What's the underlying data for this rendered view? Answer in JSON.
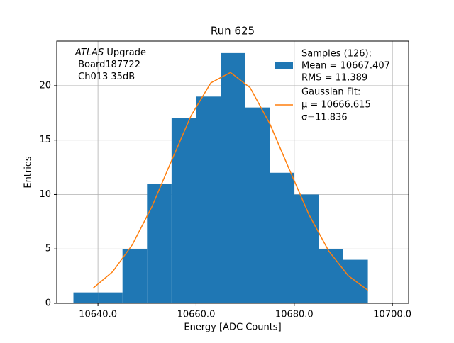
{
  "chart_data": {
    "type": "histogram",
    "title": "Run 625",
    "xlabel": "Energy [ADC Counts]",
    "ylabel": "Entries",
    "annotation": {
      "italic": "ATLAS",
      "lines": [
        "Upgrade",
        "Board187722",
        "Ch013 35dB"
      ]
    },
    "bins": [
      10635,
      10640,
      10645,
      10650,
      10655,
      10660,
      10665,
      10670,
      10675,
      10680,
      10685,
      10690,
      10695
    ],
    "series": [
      {
        "name": "Samples (126):",
        "details": [
          " Mean = 10667.407",
          " RMS = 11.389"
        ],
        "color": "#1f77b4",
        "values": [
          1,
          1,
          5,
          11,
          17,
          19,
          23,
          18,
          12,
          10,
          5,
          4
        ]
      }
    ],
    "fit": {
      "type": "line",
      "name": "Gaussian Fit:",
      "details": [
        " μ = 10666.615",
        " σ=11.836"
      ],
      "color": "#ff7f0e",
      "x": [
        10639,
        10643,
        10647,
        10651,
        10655,
        10659,
        10663,
        10667,
        10671,
        10675,
        10679,
        10683,
        10687,
        10691,
        10695
      ],
      "values": [
        1.39,
        2.91,
        5.38,
        8.89,
        13.12,
        17.27,
        20.26,
        21.22,
        19.82,
        16.52,
        12.3,
        8.15,
        4.82,
        2.54,
        1.2
      ]
    },
    "xlim": [
      10631.6,
      10703.3
    ],
    "ylim": [
      0,
      24.1
    ],
    "xticks": [
      {
        "value": 10640,
        "label": "10640.0"
      },
      {
        "value": 10660,
        "label": "10660.0"
      },
      {
        "value": 10680,
        "label": "10680.0"
      },
      {
        "value": 10700,
        "label": "10700.0"
      }
    ],
    "yticks": [
      0,
      5,
      10,
      15,
      20
    ],
    "grid": true,
    "legend": "upper right"
  }
}
